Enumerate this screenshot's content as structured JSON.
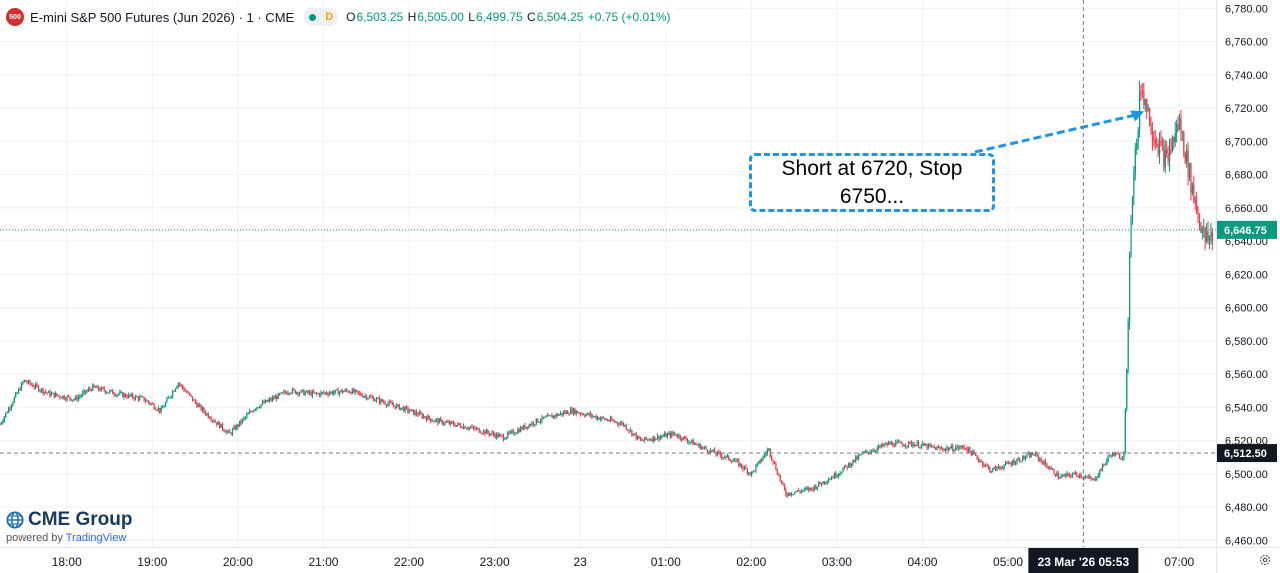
{
  "header": {
    "symbol_badge": "500",
    "title": "E-mini S&P 500 Futures (Jun 2026) · 1 · CME",
    "status_badge": "D",
    "open_label": "O",
    "open": "6,503.25",
    "high_label": "H",
    "high": "6,505.00",
    "low_label": "L",
    "low": "6,499.75",
    "close_label": "C",
    "close": "6,504.25",
    "change": "+0.75 (+0.01%)"
  },
  "brand": {
    "name": "CME Group",
    "powered_prefix": "powered by",
    "powered_name": "TradingView"
  },
  "annotation": {
    "line1": "Short at 6720, Stop",
    "line2": "6750..."
  },
  "colors": {
    "up": "#089981",
    "down": "#f23645",
    "callout": "#1e96e8",
    "grid": "#eef0f3",
    "axis_text": "#131722"
  },
  "icons": {
    "settings": "gear-icon",
    "brand": "globe-icon"
  },
  "chart_data": {
    "type": "candlestick",
    "timeframe": "1 minute",
    "ylim": [
      6456,
      6785
    ],
    "y_ticks": [
      "6,780.00",
      "6,760.00",
      "6,740.00",
      "6,720.00",
      "6,700.00",
      "6,680.00",
      "6,660.00",
      "6,640.00",
      "6,620.00",
      "6,600.00",
      "6,580.00",
      "6,560.00",
      "6,540.00",
      "6,520.00",
      "6,500.00",
      "6,480.00",
      "6,460.00"
    ],
    "y_tick_values": [
      6780,
      6760,
      6740,
      6720,
      6700,
      6680,
      6660,
      6640,
      6620,
      6600,
      6580,
      6560,
      6540,
      6520,
      6500,
      6480,
      6460
    ],
    "x_ticks": [
      "18:00",
      "19:00",
      "20:00",
      "21:00",
      "22:00",
      "23:00",
      "23",
      "01:00",
      "02:00",
      "03:00",
      "04:00",
      "05:00",
      "07:00"
    ],
    "x_tick_hours": [
      1,
      2,
      3,
      4,
      5,
      6,
      7,
      8,
      9,
      10,
      11,
      12,
      14
    ],
    "x_range_hours": [
      0.22,
      14.43
    ],
    "price_path": [
      [
        0.22,
        6530
      ],
      [
        0.5,
        6556
      ],
      [
        0.8,
        6548
      ],
      [
        1.1,
        6545
      ],
      [
        1.3,
        6552
      ],
      [
        1.6,
        6548
      ],
      [
        1.9,
        6545
      ],
      [
        2.1,
        6538
      ],
      [
        2.3,
        6555
      ],
      [
        2.55,
        6540
      ],
      [
        2.9,
        6524
      ],
      [
        3.2,
        6540
      ],
      [
        3.6,
        6550
      ],
      [
        3.9,
        6548
      ],
      [
        4.3,
        6550
      ],
      [
        4.6,
        6545
      ],
      [
        5.0,
        6538
      ],
      [
        5.3,
        6532
      ],
      [
        5.7,
        6528
      ],
      [
        6.1,
        6522
      ],
      [
        6.5,
        6532
      ],
      [
        6.9,
        6538
      ],
      [
        7.2,
        6534
      ],
      [
        7.5,
        6530
      ],
      [
        7.7,
        6520
      ],
      [
        8.1,
        6524
      ],
      [
        8.5,
        6514
      ],
      [
        8.8,
        6508
      ],
      [
        9.0,
        6500
      ],
      [
        9.2,
        6515
      ],
      [
        9.4,
        6488
      ],
      [
        9.7,
        6491
      ],
      [
        10.0,
        6500
      ],
      [
        10.3,
        6512
      ],
      [
        10.6,
        6518
      ],
      [
        10.9,
        6518
      ],
      [
        11.2,
        6515
      ],
      [
        11.5,
        6516
      ],
      [
        11.8,
        6502
      ],
      [
        12.1,
        6508
      ],
      [
        12.3,
        6512
      ],
      [
        12.6,
        6498
      ],
      [
        12.8,
        6500
      ],
      [
        13.0,
        6496
      ],
      [
        13.2,
        6512
      ],
      [
        13.35,
        6510
      ],
      [
        13.45,
        6650
      ],
      [
        13.55,
        6735
      ],
      [
        13.7,
        6705
      ],
      [
        13.85,
        6688
      ],
      [
        14.0,
        6712
      ],
      [
        14.15,
        6672
      ],
      [
        14.3,
        6640
      ],
      [
        14.43,
        6646
      ]
    ],
    "last_price": "6,646.75",
    "last_price_value": 6646.75,
    "crosshair_price": "6,512.50",
    "crosshair_price_value": 6512.5,
    "crosshair_time": "23 Mar '26   05:53",
    "crosshair_time_hours": 12.88,
    "grid": true,
    "annotation_target": {
      "time_hours": 13.59,
      "price": 6718
    }
  }
}
